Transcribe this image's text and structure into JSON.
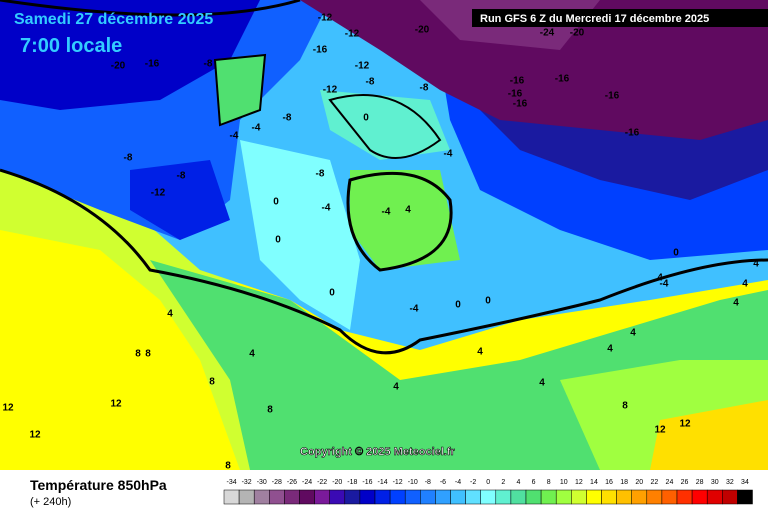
{
  "header": {
    "date": "Samedi 27 décembre 2025",
    "time": "7:00 locale",
    "run": "Run GFS 6 Z du Mercredi 17 décembre 2025"
  },
  "copyright": "Copyright © 2025 Meteociel.fr",
  "footer": {
    "title": "Température 850hPa",
    "lead": "(+ 240h)"
  },
  "map": {
    "labels": [
      "-20",
      "-16",
      "-8",
      "-12",
      "-16",
      "-12",
      "-12",
      "-20",
      "-24",
      "-20",
      "-16",
      "-16",
      "-16",
      "-16",
      "-16",
      "-16",
      "-12",
      "-8",
      "-8",
      "-8",
      "-12",
      "-8",
      "-4",
      "-4",
      "-8",
      "-8",
      "-4",
      "0",
      "-4",
      "-4",
      "4",
      "0",
      "0",
      "0",
      "-4",
      "0",
      "0",
      "4",
      "4",
      "8",
      "8",
      "12",
      "12",
      "8",
      "8",
      "4",
      "4",
      "4",
      "4",
      "4",
      "8",
      "12",
      "12",
      "4",
      "4",
      "4",
      "0",
      "4",
      "-4",
      "12",
      "8"
    ]
  },
  "legend": {
    "steps": [
      {
        "value": -34,
        "color": "#d8d8d8"
      },
      {
        "value": -32,
        "color": "#b4b4b4"
      },
      {
        "value": -30,
        "color": "#a080a0"
      },
      {
        "value": -28,
        "color": "#905090"
      },
      {
        "value": -26,
        "color": "#7a2a7a"
      },
      {
        "value": -24,
        "color": "#600a60"
      },
      {
        "value": -22,
        "color": "#7a1a9a"
      },
      {
        "value": -20,
        "color": "#3a0ab4"
      },
      {
        "value": -18,
        "color": "#1a1aa0"
      },
      {
        "value": -16,
        "color": "#0000c8"
      },
      {
        "value": -14,
        "color": "#0020e6"
      },
      {
        "value": -12,
        "color": "#0040ff"
      },
      {
        "value": -10,
        "color": "#1060ff"
      },
      {
        "value": -8,
        "color": "#2080ff"
      },
      {
        "value": -6,
        "color": "#30a0ff"
      },
      {
        "value": -4,
        "color": "#40c0ff"
      },
      {
        "value": -2,
        "color": "#60e0ff"
      },
      {
        "value": 0,
        "color": "#80ffff"
      },
      {
        "value": 2,
        "color": "#60f0d0"
      },
      {
        "value": 4,
        "color": "#50e0a0"
      },
      {
        "value": 6,
        "color": "#50e070"
      },
      {
        "value": 8,
        "color": "#70f050"
      },
      {
        "value": 10,
        "color": "#a0ff40"
      },
      {
        "value": 12,
        "color": "#d0ff30"
      },
      {
        "value": 14,
        "color": "#ffff00"
      },
      {
        "value": 16,
        "color": "#ffe000"
      },
      {
        "value": 18,
        "color": "#ffc000"
      },
      {
        "value": 20,
        "color": "#ffa000"
      },
      {
        "value": 22,
        "color": "#ff8000"
      },
      {
        "value": 24,
        "color": "#ff6000"
      },
      {
        "value": 26,
        "color": "#ff3000"
      },
      {
        "value": 28,
        "color": "#ff0000"
      },
      {
        "value": 30,
        "color": "#e00000"
      },
      {
        "value": 32,
        "color": "#c00000"
      },
      {
        "value": 34,
        "color": "#000000"
      }
    ]
  }
}
